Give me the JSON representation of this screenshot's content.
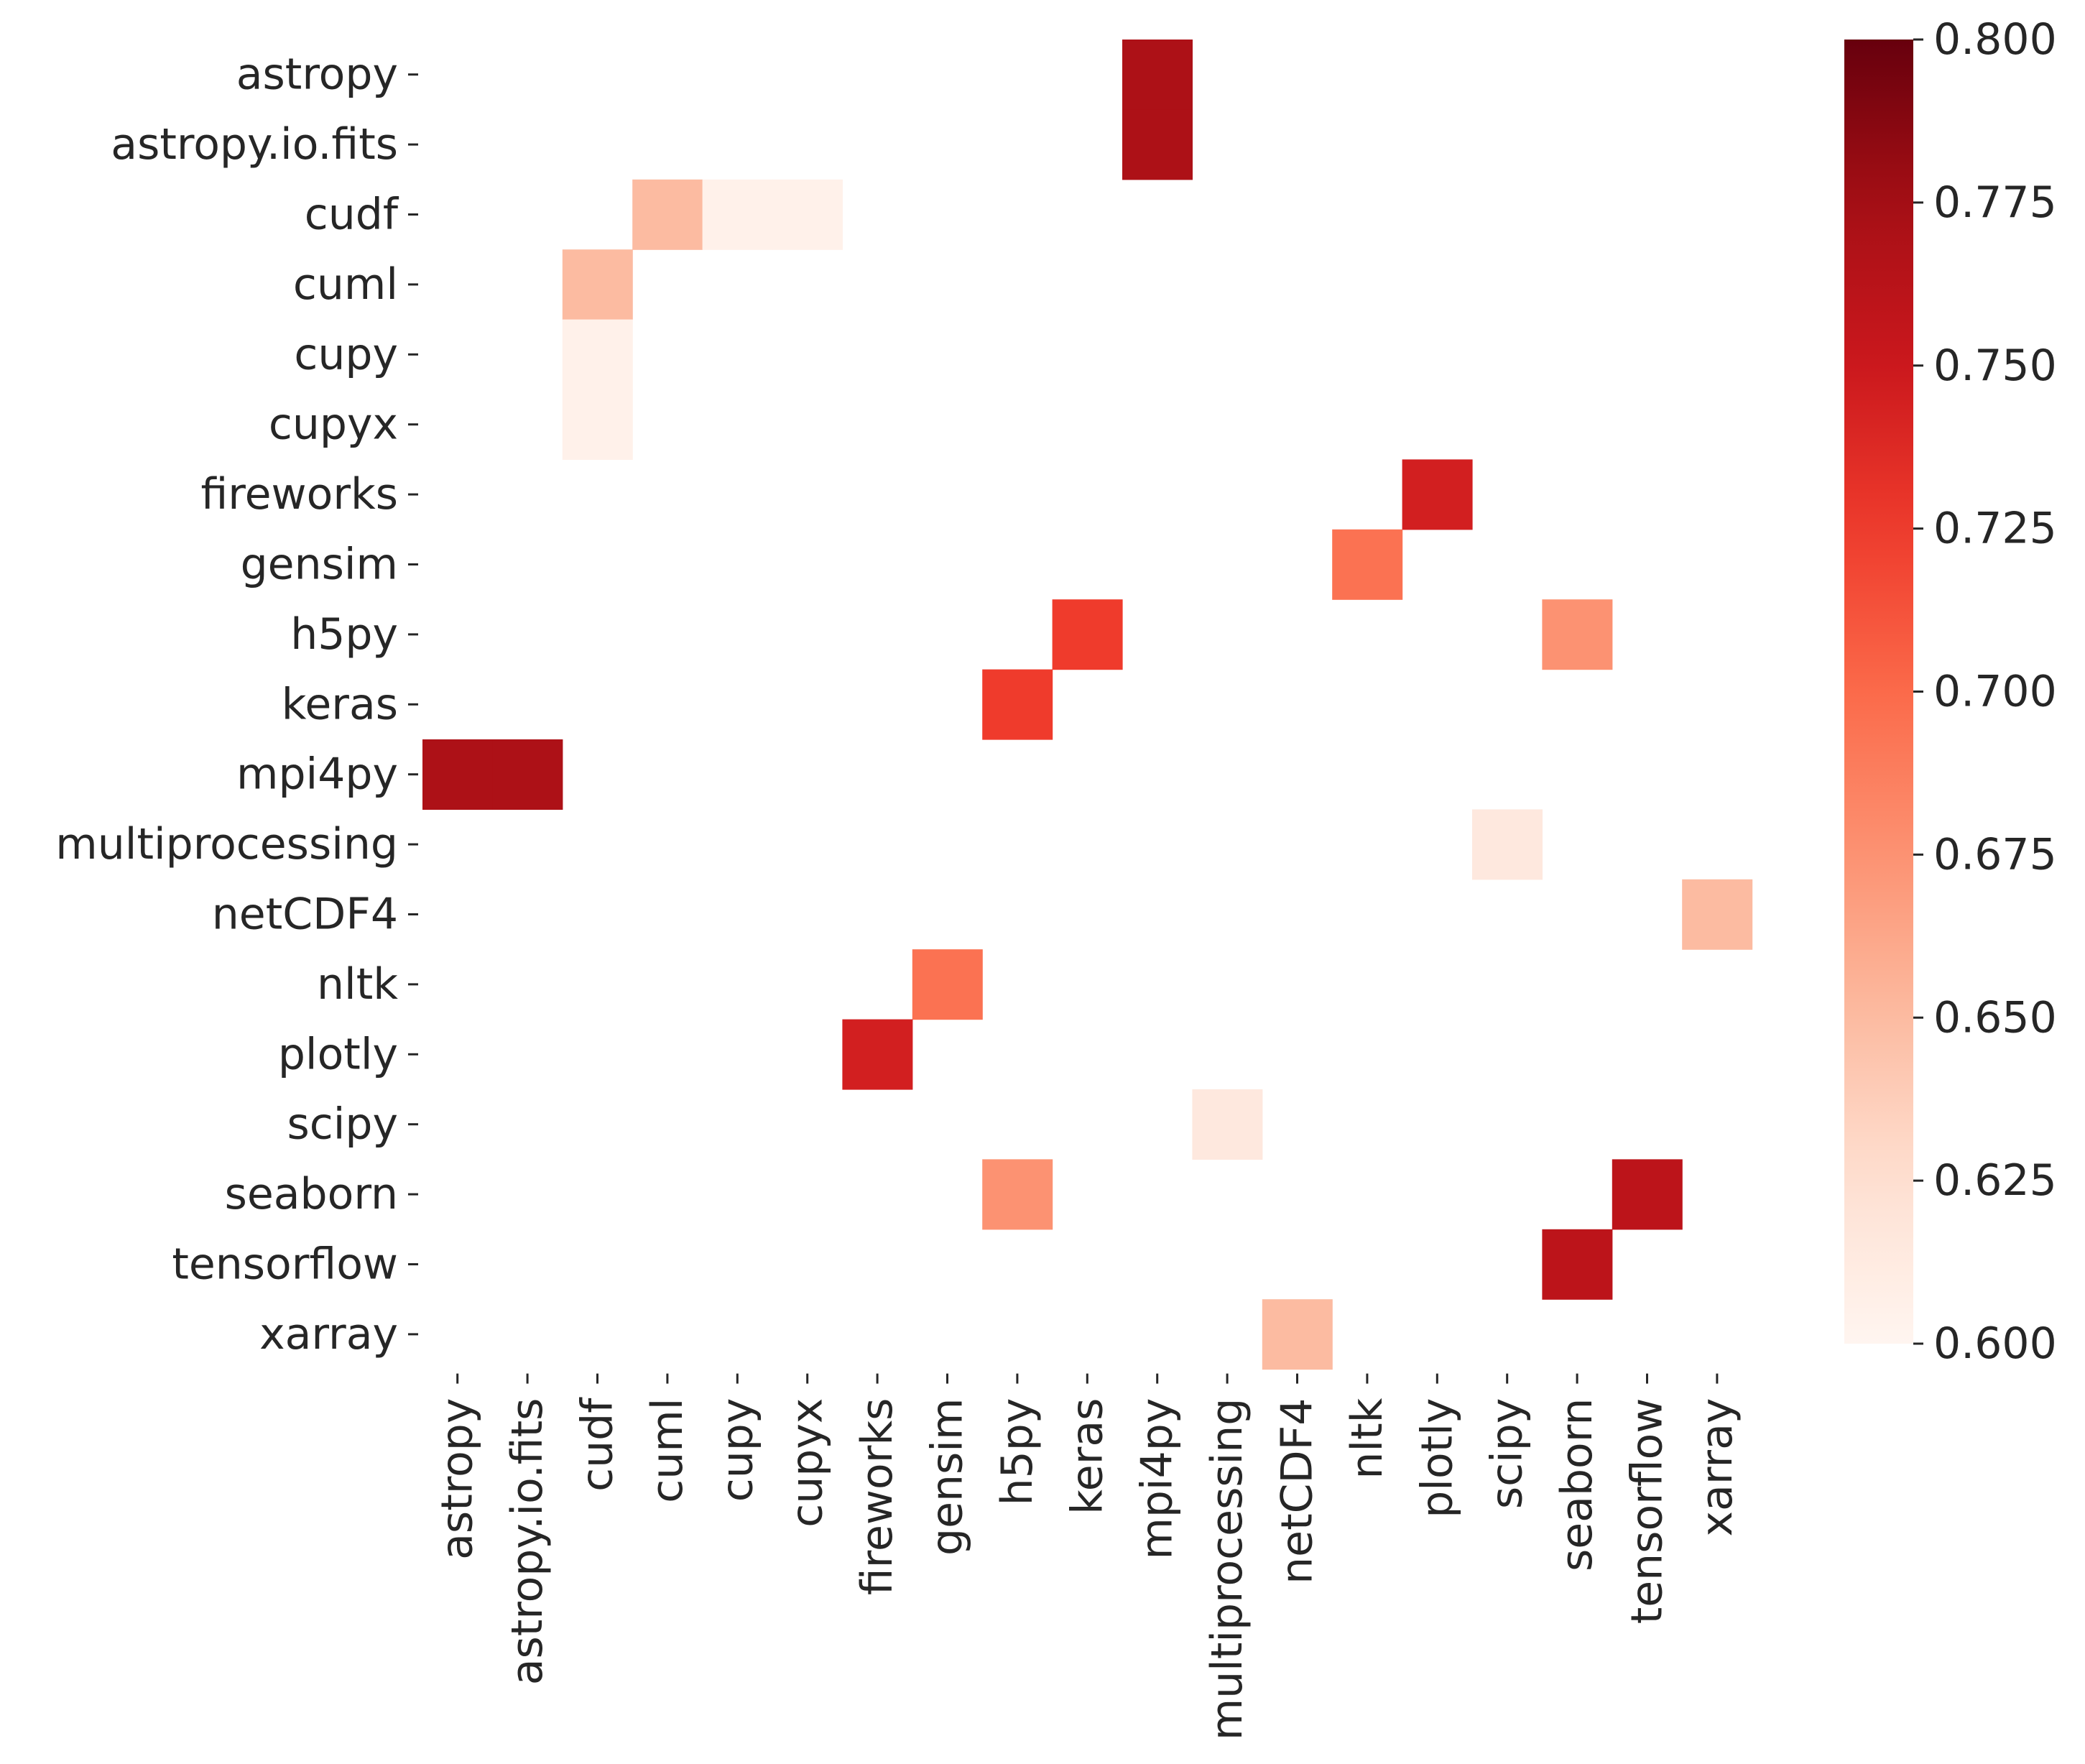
{
  "chart_data": {
    "type": "heatmap",
    "title": "",
    "xlabel": "",
    "ylabel": "",
    "row_labels": [
      "astropy",
      "astropy.io.fits",
      "cudf",
      "cuml",
      "cupy",
      "cupyx",
      "fireworks",
      "gensim",
      "h5py",
      "keras",
      "mpi4py",
      "multiprocessing",
      "netCDF4",
      "nltk",
      "plotly",
      "scipy",
      "seaborn",
      "tensorflow",
      "xarray"
    ],
    "col_labels": [
      "astropy",
      "astropy.io.fits",
      "cudf",
      "cuml",
      "cupy",
      "cupyx",
      "fireworks",
      "gensim",
      "h5py",
      "keras",
      "mpi4py",
      "multiprocessing",
      "netCDF4",
      "nltk",
      "plotly",
      "scipy",
      "seaborn",
      "tensorflow",
      "xarray"
    ],
    "cells": [
      {
        "row": "astropy",
        "col": "mpi4py",
        "value": 0.77
      },
      {
        "row": "astropy.io.fits",
        "col": "mpi4py",
        "value": 0.77
      },
      {
        "row": "cudf",
        "col": "cuml",
        "value": 0.65
      },
      {
        "row": "cudf",
        "col": "cupy",
        "value": 0.605
      },
      {
        "row": "cudf",
        "col": "cupyx",
        "value": 0.605
      },
      {
        "row": "cuml",
        "col": "cudf",
        "value": 0.65
      },
      {
        "row": "cupy",
        "col": "cudf",
        "value": 0.605
      },
      {
        "row": "cupyx",
        "col": "cudf",
        "value": 0.605
      },
      {
        "row": "fireworks",
        "col": "plotly",
        "value": 0.745
      },
      {
        "row": "gensim",
        "col": "nltk",
        "value": 0.695
      },
      {
        "row": "h5py",
        "col": "keras",
        "value": 0.725
      },
      {
        "row": "h5py",
        "col": "seaborn",
        "value": 0.675
      },
      {
        "row": "keras",
        "col": "h5py",
        "value": 0.725
      },
      {
        "row": "mpi4py",
        "col": "astropy",
        "value": 0.77
      },
      {
        "row": "mpi4py",
        "col": "astropy.io.fits",
        "value": 0.77
      },
      {
        "row": "multiprocessing",
        "col": "scipy",
        "value": 0.615
      },
      {
        "row": "netCDF4",
        "col": "xarray",
        "value": 0.65
      },
      {
        "row": "nltk",
        "col": "gensim",
        "value": 0.695
      },
      {
        "row": "plotly",
        "col": "fireworks",
        "value": 0.745
      },
      {
        "row": "scipy",
        "col": "multiprocessing",
        "value": 0.615
      },
      {
        "row": "seaborn",
        "col": "h5py",
        "value": 0.675
      },
      {
        "row": "seaborn",
        "col": "tensorflow",
        "value": 0.76
      },
      {
        "row": "tensorflow",
        "col": "seaborn",
        "value": 0.76
      },
      {
        "row": "xarray",
        "col": "netCDF4",
        "value": 0.65
      }
    ],
    "colorbar": {
      "colormap": "Reds",
      "vmin": 0.6,
      "vmax": 0.8,
      "ticks": [
        "0.600",
        "0.625",
        "0.650",
        "0.675",
        "0.700",
        "0.725",
        "0.750",
        "0.775",
        "0.800"
      ]
    },
    "grid": false,
    "legend": "colorbar-right"
  }
}
